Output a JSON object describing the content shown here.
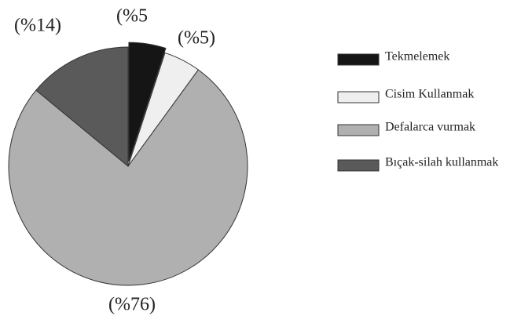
{
  "chart_data": {
    "type": "pie",
    "categories": [
      "Tekmelemek",
      "Cisim Kullanmak",
      "Defalarca vurmak",
      "Bıçak-silah kullanmak"
    ],
    "values": [
      5,
      5,
      76,
      14
    ],
    "value_labels": [
      "(%5",
      "(%5)",
      "(%76)",
      "(%14)"
    ],
    "colors": [
      "#151515",
      "#efefef",
      "#b0b0b0",
      "#5a5a5a"
    ],
    "legend": "right"
  }
}
